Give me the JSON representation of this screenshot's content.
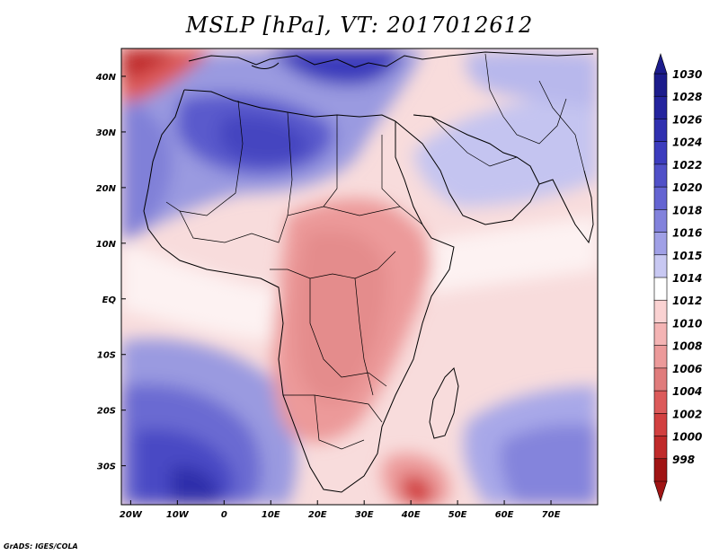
{
  "title": "MSLP [hPa], VT: 2017012612",
  "credit": "GrADS: IGES/COLA",
  "chart_data": {
    "type": "heatmap",
    "variable": "MSLP",
    "units": "hPa",
    "valid_time": "2017012612",
    "x_axis": {
      "range": [
        -22,
        80
      ],
      "ticks": [
        {
          "value": -20,
          "label": "20W"
        },
        {
          "value": -10,
          "label": "10W"
        },
        {
          "value": 0,
          "label": "0"
        },
        {
          "value": 10,
          "label": "10E"
        },
        {
          "value": 20,
          "label": "20E"
        },
        {
          "value": 30,
          "label": "30E"
        },
        {
          "value": 40,
          "label": "40E"
        },
        {
          "value": 50,
          "label": "50E"
        },
        {
          "value": 60,
          "label": "60E"
        },
        {
          "value": 70,
          "label": "70E"
        }
      ]
    },
    "y_axis": {
      "range": [
        -37,
        45
      ],
      "ticks": [
        {
          "value": 40,
          "label": "40N"
        },
        {
          "value": 30,
          "label": "30N"
        },
        {
          "value": 20,
          "label": "20N"
        },
        {
          "value": 10,
          "label": "10N"
        },
        {
          "value": 0,
          "label": "EQ"
        },
        {
          "value": -10,
          "label": "10S"
        },
        {
          "value": -20,
          "label": "20S"
        },
        {
          "value": -30,
          "label": "30S"
        }
      ]
    },
    "colorbar": [
      {
        "label": "1030",
        "color": "#1c1c8c"
      },
      {
        "label": "1028",
        "color": "#24249e"
      },
      {
        "label": "1026",
        "color": "#3030b0"
      },
      {
        "label": "1024",
        "color": "#3c3cbe"
      },
      {
        "label": "1022",
        "color": "#5050c8"
      },
      {
        "label": "1020",
        "color": "#6464d2"
      },
      {
        "label": "1018",
        "color": "#8282dc"
      },
      {
        "label": "1016",
        "color": "#a0a0e6"
      },
      {
        "label": "1015",
        "color": "#c8c8f2"
      },
      {
        "label": "1014",
        "color": "#ffffff"
      },
      {
        "label": "1012",
        "color": "#fad2d2"
      },
      {
        "label": "1010",
        "color": "#f4b4b4"
      },
      {
        "label": "1008",
        "color": "#ec9a9a"
      },
      {
        "label": "1006",
        "color": "#e07c7c"
      },
      {
        "label": "1004",
        "color": "#dc5a5a"
      },
      {
        "label": "1002",
        "color": "#d24040"
      },
      {
        "label": "1000",
        "color": "#c02a2a"
      },
      {
        "label": "998",
        "color": "#a01414"
      }
    ],
    "pressure_features": [
      {
        "name": "high",
        "lon": -5,
        "lat": -35,
        "hpa": 1028
      },
      {
        "name": "high",
        "lon": -5,
        "lat": 28,
        "hpa": 1024
      },
      {
        "name": "high",
        "lon": 22,
        "lat": 40,
        "hpa": 1026
      },
      {
        "name": "high",
        "lon": 65,
        "lat": -30,
        "hpa": 1022
      },
      {
        "name": "low",
        "lon": -15,
        "lat": 43,
        "hpa": 1002
      },
      {
        "name": "low",
        "lon": 42,
        "lat": -36,
        "hpa": 1000
      },
      {
        "name": "low",
        "lon": 30,
        "lat": 5,
        "hpa": 1008
      },
      {
        "name": "low",
        "lon": 28,
        "lat": -18,
        "hpa": 1008
      }
    ]
  }
}
